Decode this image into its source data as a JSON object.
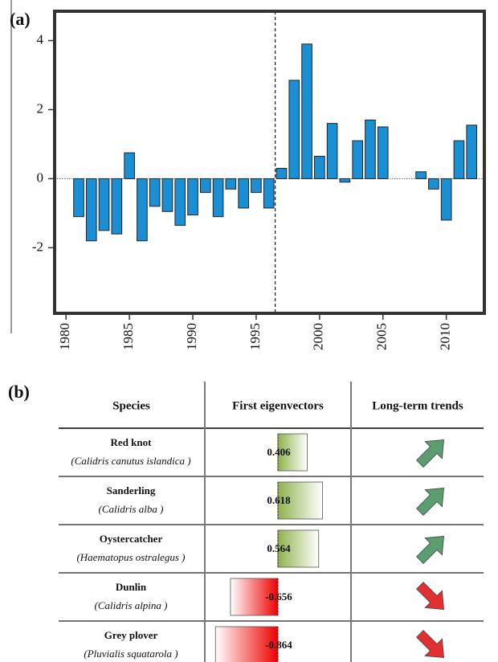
{
  "chart_data": {
    "type": "bar",
    "panel": "(a)",
    "x": [
      1981,
      1982,
      1983,
      1984,
      1985,
      1986,
      1987,
      1988,
      1989,
      1990,
      1991,
      1992,
      1993,
      1994,
      1995,
      1996,
      1997,
      1998,
      1999,
      2000,
      2001,
      2002,
      2003,
      2004,
      2005,
      2006,
      2007,
      2008,
      2009,
      2010,
      2011,
      2012
    ],
    "values": [
      -1.1,
      -1.8,
      -1.5,
      -1.6,
      0.75,
      -1.8,
      -0.8,
      -0.95,
      -1.35,
      -1.05,
      -0.4,
      -1.1,
      -0.3,
      -0.85,
      -0.4,
      -0.85,
      0.3,
      2.85,
      3.9,
      0.65,
      1.6,
      -0.1,
      1.1,
      1.7,
      1.5,
      null,
      null,
      0.2,
      -0.3,
      -1.2,
      1.1,
      1.55
    ],
    "color": "#1a8fd4",
    "xlim": [
      1979.1,
      2013.0
    ],
    "xticks": [
      1980,
      1985,
      1990,
      1995,
      2000,
      2005,
      2010
    ],
    "ylim": [
      -3.9,
      4.85
    ],
    "yticks": [
      4,
      2,
      0,
      -2
    ],
    "breakpoint_x": 1996.5
  },
  "table": {
    "panel": "(b)",
    "headers": [
      "Species",
      "First eigenvectors",
      "Long-term trends"
    ],
    "rows": [
      {
        "name": "Red knot",
        "latin": "(Calidris canutus islandica )",
        "eigenvector": 0.406,
        "trend": "up"
      },
      {
        "name": "Sanderling",
        "latin": "(Calidris alba )",
        "eigenvector": 0.618,
        "trend": "up"
      },
      {
        "name": "Oystercatcher",
        "latin": "(Haematopus ostralegus )",
        "eigenvector": 0.564,
        "trend": "up"
      },
      {
        "name": "Dunlin",
        "latin": "(Calidris alpina )",
        "eigenvector": -0.656,
        "trend": "down"
      },
      {
        "name": "Grey plover",
        "latin": "(Pluvialis squatarola )",
        "eigenvector": -0.864,
        "trend": "down"
      }
    ]
  }
}
